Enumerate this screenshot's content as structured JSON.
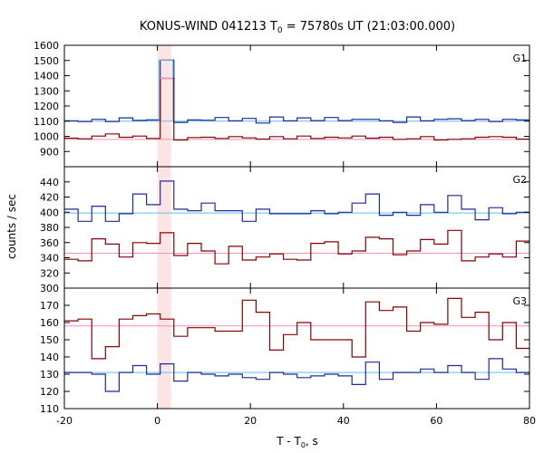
{
  "title": {
    "main": "KONUS-WIND 041213 T",
    "sub": "0",
    "rest": " = 75780s UT (21:03:00.000)"
  },
  "xlabel": {
    "main": "T - T",
    "sub": "0",
    "rest": ", s"
  },
  "ylabel": "counts / sec",
  "colors": {
    "blue_series": "#1f2aa0",
    "red_series": "#8b0000",
    "cyan_line": "#5fbfe6",
    "pink_line": "#f08fc0",
    "shade": "#fde4e4"
  },
  "chart_data": [
    {
      "type": "line",
      "panel": "G1",
      "xlim": [
        -20,
        80
      ],
      "ylim": [
        800,
        1600
      ],
      "yticks": [
        800,
        900,
        1000,
        1100,
        1200,
        1300,
        1400,
        1500,
        1600
      ],
      "xticks": [
        -20,
        0,
        20,
        40,
        60,
        80
      ],
      "shaded_interval": [
        0,
        2.944
      ],
      "step_width": 2.944,
      "series": [
        {
          "role": "blue",
          "x0": -20,
          "values": [
            1102,
            1098,
            1112,
            1098,
            1122,
            1105,
            1108,
            1502,
            1092,
            1108,
            1106,
            1124,
            1102,
            1118,
            1088,
            1128,
            1102,
            1122,
            1104,
            1124,
            1104,
            1112,
            1112,
            1102,
            1092,
            1128,
            1102,
            1112,
            1116,
            1104,
            1112,
            1098,
            1112,
            1108
          ]
        },
        {
          "role": "red",
          "x0": -20,
          "values": [
            988,
            984,
            1002,
            1016,
            994,
            1002,
            986,
            1382,
            976,
            992,
            994,
            986,
            998,
            990,
            982,
            998,
            984,
            1002,
            986,
            994,
            990,
            1002,
            988,
            994,
            980,
            984,
            998,
            976,
            980,
            984,
            994,
            998,
            994,
            982
          ]
        }
      ],
      "background_levels": [
        {
          "role": "blue",
          "value": 1100
        },
        {
          "role": "red",
          "value": 980
        }
      ]
    },
    {
      "type": "line",
      "panel": "G2",
      "xlim": [
        -20,
        80
      ],
      "ylim": [
        300,
        460
      ],
      "yticks": [
        300,
        320,
        340,
        360,
        380,
        400,
        420,
        440
      ],
      "shaded_interval": [
        0,
        2.944
      ],
      "step_width": 2.944,
      "series": [
        {
          "role": "blue",
          "x0": -20,
          "values": [
            404,
            388,
            408,
            388,
            398,
            424,
            410,
            441,
            404,
            402,
            412,
            402,
            402,
            388,
            404,
            398,
            398,
            398,
            402,
            398,
            400,
            412,
            424,
            396,
            400,
            396,
            410,
            400,
            422,
            404,
            390,
            406,
            398,
            400
          ]
        },
        {
          "role": "red",
          "x0": -20,
          "values": [
            338,
            336,
            365,
            358,
            341,
            360,
            359,
            373,
            343,
            359,
            349,
            332,
            355,
            337,
            341,
            345,
            338,
            337,
            359,
            361,
            345,
            349,
            367,
            365,
            344,
            349,
            364,
            358,
            376,
            336,
            341,
            345,
            341,
            362
          ]
        }
      ],
      "background_levels": [
        {
          "role": "blue",
          "value": 399
        },
        {
          "role": "red",
          "value": 346
        }
      ]
    },
    {
      "type": "line",
      "panel": "G3",
      "xlim": [
        -20,
        80
      ],
      "ylim": [
        110,
        180
      ],
      "yticks": [
        110,
        120,
        130,
        140,
        150,
        160,
        170
      ],
      "shaded_interval": [
        0,
        2.944
      ],
      "step_width": 2.944,
      "series": [
        {
          "role": "blue",
          "x0": -20,
          "values": [
            131,
            131,
            130,
            120,
            131,
            135,
            130,
            136,
            126,
            131,
            130,
            129,
            130,
            128,
            127,
            131,
            130,
            128,
            129,
            130,
            129,
            124,
            137,
            127,
            131,
            131,
            133,
            131,
            135,
            131,
            127,
            139,
            133,
            131
          ]
        },
        {
          "role": "red",
          "x0": -20,
          "values": [
            161,
            162,
            139,
            146,
            162,
            164,
            165,
            162,
            152,
            157,
            157,
            155,
            155,
            173,
            166,
            144,
            153,
            160,
            150,
            150,
            150,
            140,
            172,
            167,
            169,
            155,
            160,
            159,
            174,
            163,
            166,
            150,
            160,
            145
          ]
        }
      ],
      "background_levels": [
        {
          "role": "blue",
          "value": 131
        },
        {
          "role": "red",
          "value": 158
        }
      ]
    }
  ],
  "panel_labels": [
    "G1",
    "G2",
    "G3"
  ],
  "ytick_labels": [
    [
      "900",
      "1000",
      "1100",
      "1200",
      "1300",
      "1400",
      "1500",
      "1600"
    ],
    [
      "300",
      "320",
      "340",
      "360",
      "380",
      "400",
      "420",
      "440"
    ],
    [
      "110",
      "120",
      "130",
      "140",
      "150",
      "160",
      "170"
    ]
  ],
  "xtick_labels": [
    "-20",
    "0",
    "20",
    "40",
    "60",
    "80"
  ]
}
